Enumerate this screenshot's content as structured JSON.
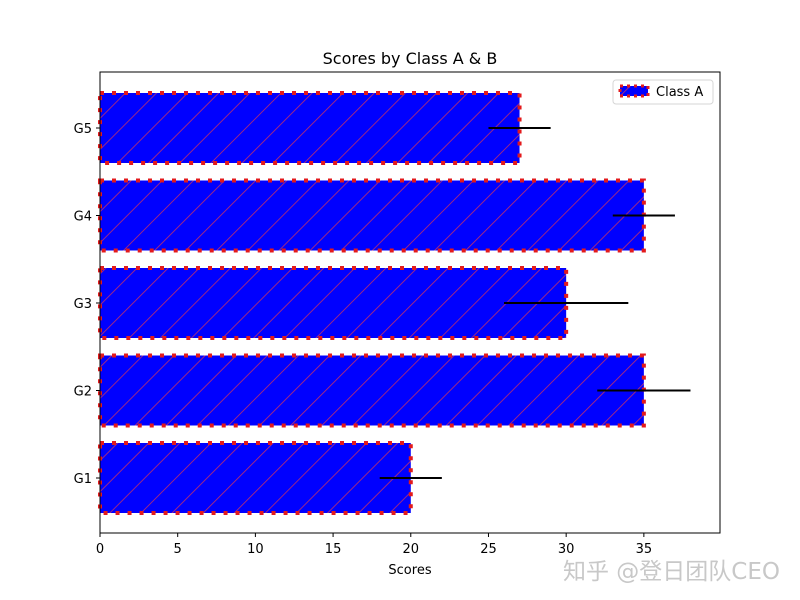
{
  "chart_data": {
    "type": "bar",
    "orientation": "horizontal",
    "title": "Scores by Class A & B",
    "xlabel": "Scores",
    "ylabel": "",
    "categories": [
      "G1",
      "G2",
      "G3",
      "G4",
      "G5"
    ],
    "series": [
      {
        "name": "Class A",
        "values": [
          20,
          35,
          30,
          35,
          27
        ],
        "errors": [
          2,
          3,
          4,
          2,
          2
        ],
        "fill_color": "#0000ff",
        "edge_color": "#e31a1c",
        "edge_style": "dotted",
        "hatch": "/",
        "hatch_color": "#c0306a"
      }
    ],
    "xlim": [
      0,
      39.9
    ],
    "xticks": [
      0,
      5,
      10,
      15,
      20,
      25,
      30,
      35
    ],
    "grid": false,
    "legend_position": "upper right"
  },
  "watermark": "知乎 @登日团队CEO"
}
